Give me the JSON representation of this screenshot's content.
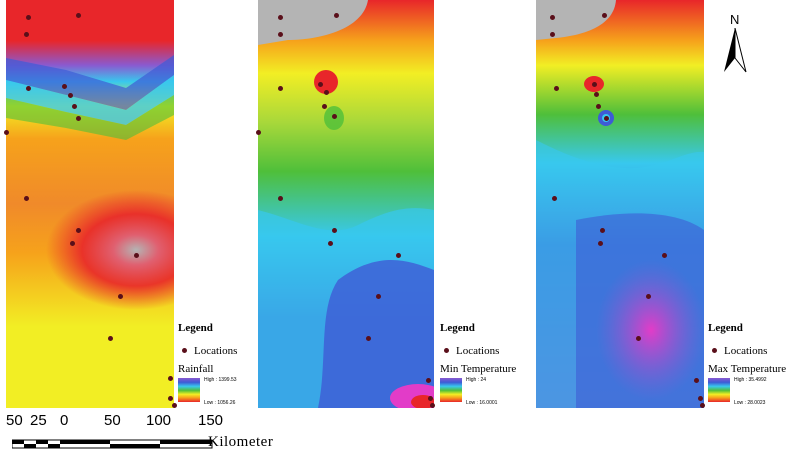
{
  "legend_title": "Legend",
  "locations_label": "Locations",
  "panels": [
    {
      "variable": "Rainfall",
      "high_label": "High : 1399.53",
      "low_label": "Low : 1056.26"
    },
    {
      "variable": "Min Temperature",
      "high_label": "High : 24",
      "low_label": "Low : 16.0001"
    },
    {
      "variable": "Max Temperature",
      "high_label": "High : 35.4992",
      "low_label": "Low : 28.0023"
    }
  ],
  "scale": {
    "ticks": [
      "50",
      "25",
      "0",
      "50",
      "100",
      "150"
    ],
    "unit": "Kilometer"
  },
  "north_label": "N",
  "colors": {
    "location_dot": "#5a0f1a",
    "red": "#e8262a",
    "orange": "#f6a21b",
    "yellow": "#f2ee24",
    "green": "#4fbf3a",
    "cyan": "#38c8ee",
    "blue": "#3e5bd6",
    "purple": "#8a5ad0",
    "magenta": "#e23cc8",
    "no_data": "#b4b4b4"
  }
}
